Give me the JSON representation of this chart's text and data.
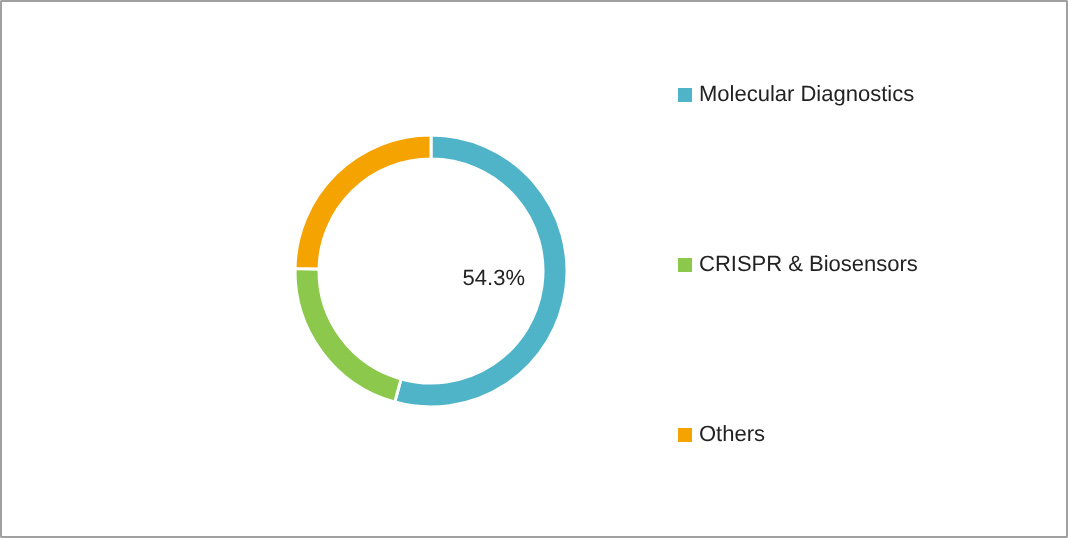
{
  "chart_data": {
    "type": "donut",
    "categories": [
      "Molecular Diagnostics",
      "CRISPR & Biosensors",
      "Others"
    ],
    "values": [
      54.3,
      21.0,
      24.7
    ],
    "colors": [
      "#4fb4c8",
      "#8cc84b",
      "#f4a300"
    ],
    "value_labels": [
      "54.3%",
      null,
      null
    ],
    "legend": "right"
  }
}
